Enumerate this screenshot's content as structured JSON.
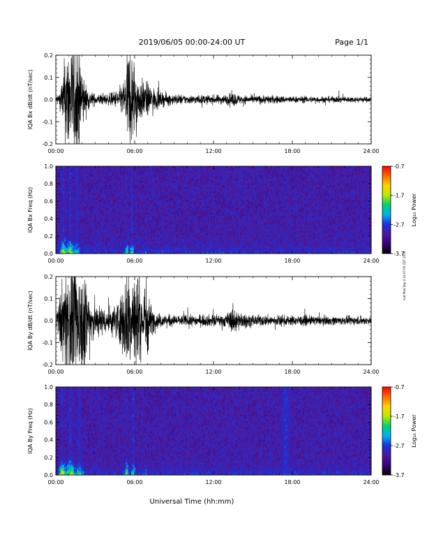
{
  "header": {
    "title": "2019/06/05   00:00-24:00 UT",
    "page": "Page 1/1"
  },
  "footer": {
    "xlabel": "Universal Time (hh:mm)"
  },
  "side_note": "mat Mod Sep 4 14:07:05 CDT 2019",
  "colors": {
    "trace": "#000000",
    "colormap": [
      "#000000",
      "#3a007a",
      "#4b1a9a",
      "#1f2fd8",
      "#00b0f0",
      "#00d070",
      "#b8e800",
      "#ffd400",
      "#ff6a00",
      "#ff0000"
    ]
  },
  "chart_data": [
    {
      "type": "line",
      "ylabel": "IQA Bx dB/dt (nT/sec)",
      "x_ticks": [
        "00:00",
        "06:00",
        "12:00",
        "18:00",
        "24:00"
      ],
      "xlim": [
        0,
        24
      ],
      "y_ticks": [
        "0.2",
        "0.1",
        "0.0",
        "-0.1",
        "-0.2"
      ],
      "ylim": [
        -0.2,
        0.2
      ],
      "envelope": {
        "x": [
          0.0,
          0.3,
          0.5,
          0.8,
          1.2,
          1.8,
          2.2,
          2.6,
          3.0,
          3.5,
          4.0,
          4.5,
          5.0,
          5.3,
          5.5,
          5.7,
          5.9,
          6.2,
          6.6,
          7.0,
          7.5,
          8.0,
          9.0,
          10.0,
          11.0,
          12.0,
          13.0,
          13.5,
          14.0,
          15.0,
          16.0,
          17.0,
          18.0,
          19.0,
          20.0,
          21.0,
          22.0,
          23.0,
          24.0
        ],
        "amplitude": [
          0.012,
          0.03,
          0.08,
          0.2,
          0.2,
          0.2,
          0.06,
          0.03,
          0.02,
          0.02,
          0.02,
          0.03,
          0.05,
          0.09,
          0.2,
          0.2,
          0.16,
          0.09,
          0.07,
          0.06,
          0.04,
          0.025,
          0.02,
          0.016,
          0.016,
          0.016,
          0.018,
          0.026,
          0.016,
          0.014,
          0.016,
          0.014,
          0.012,
          0.012,
          0.012,
          0.011,
          0.011,
          0.01,
          0.01
        ]
      }
    },
    {
      "type": "heatmap",
      "ylabel": "IQA Bx Freq (Hz)",
      "x_ticks": [
        "00:00",
        "06:00",
        "12:00",
        "18:00",
        "24:00"
      ],
      "xlim": [
        0,
        24
      ],
      "y_ticks": [
        "1.0",
        "0.8",
        "0.6",
        "0.4",
        "0.2",
        "0.0"
      ],
      "ylim": [
        0,
        1.0
      ],
      "colorbar": {
        "label": "Log₁₀ Power",
        "ticks": [
          "-0.7",
          "-1.7",
          "-2.7",
          "-3.7"
        ],
        "range": [
          -3.7,
          -0.7
        ]
      },
      "events": [
        {
          "t": 0.6,
          "w": 0.35,
          "peak": -1.1
        },
        {
          "t": 1.1,
          "w": 0.45,
          "peak": -1.3
        },
        {
          "t": 1.6,
          "w": 0.4,
          "peak": -1.8
        },
        {
          "t": 5.4,
          "w": 0.2,
          "peak": -1.6
        },
        {
          "t": 5.8,
          "w": 0.25,
          "peak": -1.7
        },
        {
          "t": 6.9,
          "w": 0.15,
          "peak": -2.2
        },
        {
          "t": 13.5,
          "w": 0.15,
          "peak": -2.7
        }
      ]
    },
    {
      "type": "line",
      "ylabel": "IQA By dB/dt (nT/sec)",
      "x_ticks": [
        "00:00",
        "06:00",
        "12:00",
        "18:00",
        "24:00"
      ],
      "xlim": [
        0,
        24
      ],
      "y_ticks": [
        "0.2",
        "0.1",
        "0.0",
        "-0.1",
        "-0.2"
      ],
      "ylim": [
        -0.2,
        0.2
      ],
      "envelope": {
        "x": [
          0.0,
          0.2,
          0.5,
          0.8,
          1.2,
          1.8,
          2.2,
          2.5,
          2.8,
          3.2,
          3.6,
          4.0,
          4.5,
          5.0,
          5.3,
          5.5,
          5.8,
          6.1,
          6.5,
          6.9,
          7.2,
          7.6,
          8.0,
          9.0,
          10.0,
          11.0,
          12.0,
          13.0,
          13.5,
          14.0,
          15.0,
          16.0,
          17.0,
          18.0,
          19.0,
          20.0,
          21.0,
          22.0,
          23.0,
          24.0
        ],
        "amplitude": [
          0.03,
          0.06,
          0.15,
          0.2,
          0.2,
          0.2,
          0.2,
          0.12,
          0.08,
          0.06,
          0.05,
          0.05,
          0.06,
          0.1,
          0.16,
          0.2,
          0.2,
          0.2,
          0.1,
          0.17,
          0.06,
          0.03,
          0.025,
          0.02,
          0.02,
          0.02,
          0.022,
          0.024,
          0.05,
          0.03,
          0.02,
          0.02,
          0.02,
          0.018,
          0.018,
          0.016,
          0.016,
          0.015,
          0.016,
          0.014
        ]
      }
    },
    {
      "type": "heatmap",
      "ylabel": "IQA By Freq (Hz)",
      "x_ticks": [
        "00:00",
        "06:00",
        "12:00",
        "18:00",
        "24:00"
      ],
      "xlim": [
        0,
        24
      ],
      "y_ticks": [
        "1.0",
        "0.8",
        "0.6",
        "0.4",
        "0.2",
        "0.0"
      ],
      "ylim": [
        0,
        1.0
      ],
      "colorbar": {
        "label": "Log₁₀ Power",
        "ticks": [
          "-0.7",
          "-1.7",
          "-2.7",
          "-3.7"
        ],
        "range": [
          -3.7,
          -0.7
        ]
      },
      "events": [
        {
          "t": 0.5,
          "w": 0.35,
          "peak": -1.0
        },
        {
          "t": 1.1,
          "w": 0.5,
          "peak": -1.1
        },
        {
          "t": 1.8,
          "w": 0.5,
          "peak": -1.7
        },
        {
          "t": 5.4,
          "w": 0.2,
          "peak": -1.4
        },
        {
          "t": 5.9,
          "w": 0.25,
          "peak": -1.6
        },
        {
          "t": 6.9,
          "w": 0.15,
          "peak": -2.1
        },
        {
          "t": 13.5,
          "w": 0.15,
          "peak": -2.5
        },
        {
          "t": 17.5,
          "w": 1.5,
          "peak": -2.9
        }
      ]
    }
  ]
}
